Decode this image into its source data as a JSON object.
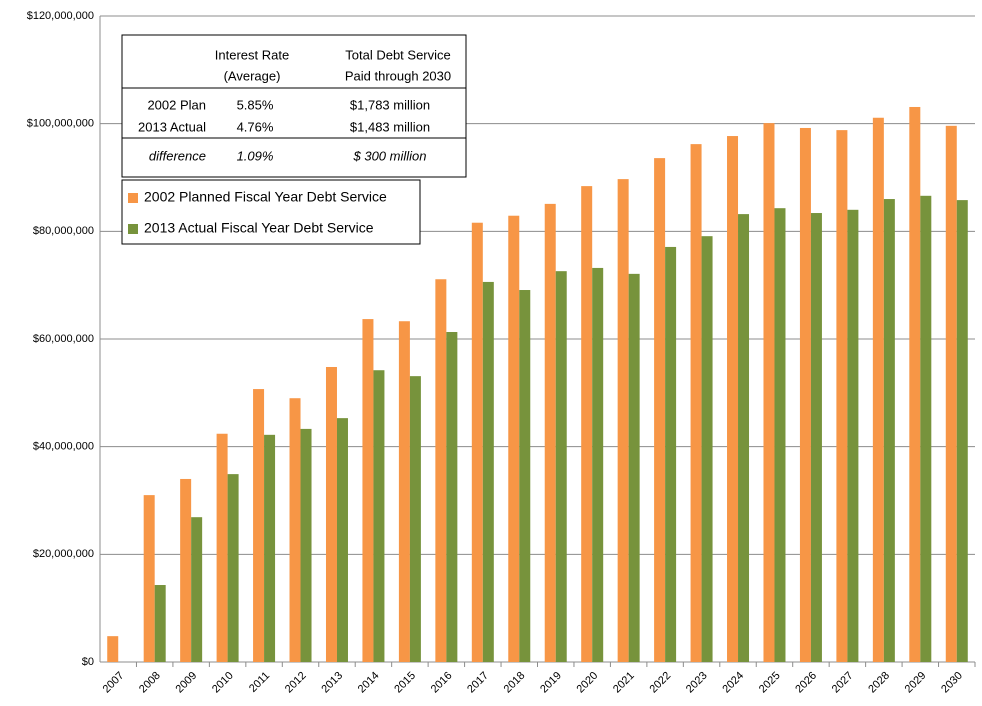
{
  "chart_data": {
    "type": "bar",
    "categories": [
      "2007",
      "2008",
      "2009",
      "2010",
      "2011",
      "2012",
      "2013",
      "2014",
      "2015",
      "2016",
      "2017",
      "2018",
      "2019",
      "2020",
      "2021",
      "2022",
      "2023",
      "2024",
      "2025",
      "2026",
      "2027",
      "2028",
      "2029",
      "2030"
    ],
    "series": [
      {
        "name": "2002 Planned Fiscal Year Debt Service",
        "color": "#f79646",
        "values": [
          4800000,
          31000000,
          34000000,
          42400000,
          50700000,
          49000000,
          54800000,
          63700000,
          63300000,
          71100000,
          81600000,
          82900000,
          85100000,
          88400000,
          89700000,
          93600000,
          96200000,
          97700000,
          100100000,
          99200000,
          98800000,
          101100000,
          103100000,
          99600000
        ]
      },
      {
        "name": "2013 Actual Fiscal Year Debt Service",
        "color": "#77933c",
        "values": [
          null,
          14300000,
          26900000,
          34900000,
          42200000,
          43300000,
          45300000,
          54200000,
          53100000,
          61300000,
          70600000,
          69100000,
          72600000,
          73200000,
          72100000,
          77100000,
          79100000,
          83200000,
          84300000,
          83400000,
          84000000,
          86000000,
          86600000,
          85800000
        ]
      }
    ],
    "ylim": [
      0,
      120000000
    ],
    "yticks": [
      {
        "value": 0,
        "label": "$0"
      },
      {
        "value": 20000000,
        "label": "$20,000,000"
      },
      {
        "value": 40000000,
        "label": "$40,000,000"
      },
      {
        "value": 60000000,
        "label": "$60,000,000"
      },
      {
        "value": 80000000,
        "label": "$80,000,000"
      },
      {
        "value": 100000000,
        "label": "$100,000,000"
      },
      {
        "value": 120000000,
        "label": "$120,000,000"
      }
    ],
    "grid": true,
    "table": {
      "header": [
        [
          "Interest Rate",
          "(Average)"
        ],
        [
          "Total Debt Service",
          "Paid through 2030"
        ]
      ],
      "rows": [
        [
          "2002 Plan",
          "5.85%",
          "$1,783 million"
        ],
        [
          "2013 Actual",
          "4.76%",
          "$1,483 million"
        ],
        [
          "difference",
          "1.09%",
          "$  300 million"
        ]
      ]
    }
  }
}
